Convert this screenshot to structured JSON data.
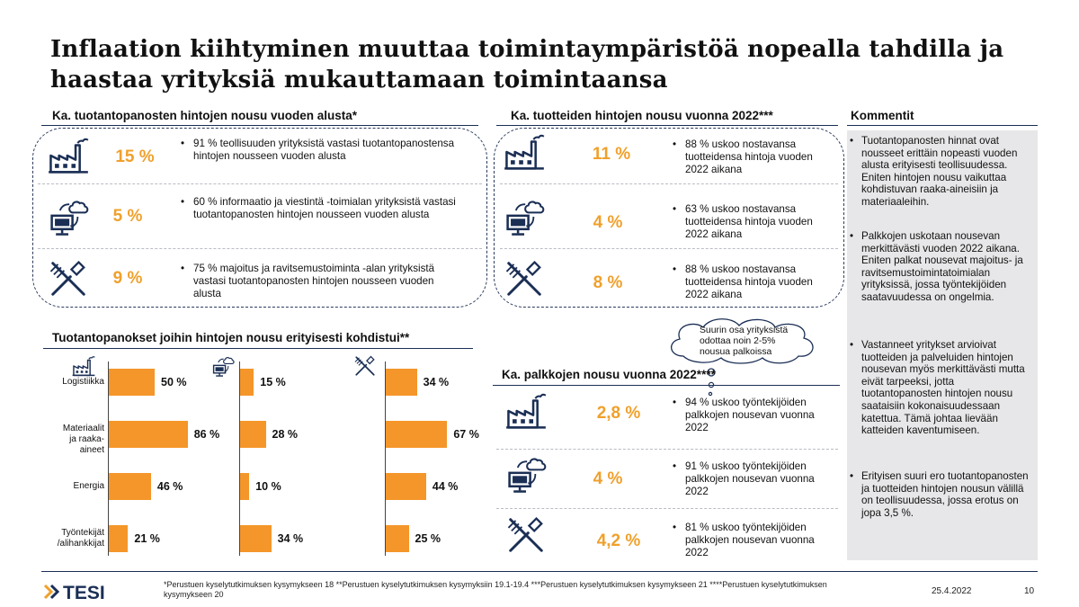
{
  "title": "Inflaation kiihtyminen muuttaa toimintaympäristöä nopealla tahdilla ja haastaa yrityksiä mukauttamaan toimintaansa",
  "left_section": {
    "heading": "Ka. tuotantopanosten hintojen nousu vuoden alusta*",
    "rows": [
      {
        "icon": "factory-icon",
        "pct": "15 %",
        "text": "91 % teollisuuden yrityksistä vastasi tuotantopanostensa hintojen nousseen vuoden alusta"
      },
      {
        "icon": "computer-cloud-icon",
        "pct": "5 %",
        "text": "60 % informaatio ja viestintä -toimialan yrityksistä vastasi tuotantopanosten hintojen nousseen vuoden alusta"
      },
      {
        "icon": "fork-knife-icon",
        "pct": "9 %",
        "text": "75 % majoitus ja ravitsemustoiminta -alan yrityksistä vastasi tuotantopanosten hintojen nousseen vuoden alusta"
      }
    ]
  },
  "middle_section": {
    "heading": "Ka. tuotteiden hintojen nousu vuonna 2022***",
    "rows": [
      {
        "icon": "factory-icon",
        "pct": "11 %",
        "text": "88 % uskoo nostavansa tuotteidensa hintoja vuoden 2022 aikana"
      },
      {
        "icon": "computer-cloud-icon",
        "pct": "4 %",
        "text": "63 % uskoo nostavansa tuotteidensa hintoja vuoden 2022 aikana"
      },
      {
        "icon": "fork-knife-icon",
        "pct": "8 %",
        "text": "88 % uskoo nostavansa tuotteidensa hintoja vuoden 2022 aikana"
      }
    ]
  },
  "wage_section": {
    "heading": "Ka. palkkojen nousu vuonna 2022****",
    "callout": "Suurin osa yrityksistä odottaa noin 2-5% nousua palkoissa",
    "rows": [
      {
        "icon": "factory-icon",
        "pct": "2,8 %",
        "text": "94 % uskoo työntekijöiden palkkojen nousevan vuonna 2022"
      },
      {
        "icon": "computer-cloud-icon",
        "pct": "4 %",
        "text": "91 % uskoo työntekijöiden palkkojen nousevan vuonna 2022"
      },
      {
        "icon": "fork-knife-icon",
        "pct": "4,2 %",
        "text": "81 % uskoo työntekijöiden palkkojen nousevan vuonna 2022"
      }
    ]
  },
  "chart_section": {
    "heading": "Tuotantopanokset joihin hintojen nousu erityisesti kohdistui**"
  },
  "chart_data": {
    "type": "bar",
    "orientation": "horizontal",
    "categories": [
      "Logistiikka",
      "Materiaalit ja raaka-aineet",
      "Energia",
      "Työntekijät /alihankkijat"
    ],
    "category_lines": [
      [
        "Logistiikka"
      ],
      [
        "Materiaalit",
        "ja raaka-aineet"
      ],
      [
        "Energia"
      ],
      [
        "Työntekijät",
        "/alihankkijat"
      ]
    ],
    "series": [
      {
        "icon": "factory-icon",
        "values": [
          50,
          86,
          46,
          21
        ],
        "labels": [
          "50 %",
          "86 %",
          "46 %",
          "21 %"
        ]
      },
      {
        "icon": "computer-cloud-icon",
        "values": [
          15,
          28,
          10,
          34
        ],
        "labels": [
          "15 %",
          "28 %",
          "10 %",
          "34 %"
        ]
      },
      {
        "icon": "fork-knife-icon",
        "values": [
          34,
          67,
          44,
          25
        ],
        "labels": [
          "34 %",
          "67 %",
          "44 %",
          "25 %"
        ]
      }
    ],
    "unit": "%",
    "xlim": [
      0,
      100
    ],
    "bar_color": "#f4962a"
  },
  "comments": {
    "heading": "Kommentit",
    "items": [
      "Tuotantopanosten hinnat ovat nousseet erittäin nopeasti vuoden alusta erityisesti teollisuudessa. Eniten hintojen nousu vaikuttaa kohdistuvan raaka-aineisiin ja materiaaleihin.",
      "Palkkojen uskotaan nousevan merkittävästi vuoden 2022 aikana. Eniten palkat nousevat majoitus- ja ravitsemustoimintatoimialan yrityksissä, jossa työntekijöiden saatavuudessa on ongelmia.",
      "Vastanneet yritykset arvioivat tuotteiden ja palveluiden hintojen nousevan myös merkittävästi mutta eivät tarpeeksi, jotta tuotantopanosten hintojen nousu saataisiin kokonaisuudessaan katettua. Tämä johtaa lievään katteiden kaventumiseen.",
      "Erityisen suuri ero tuotantopanosten ja tuotteiden hintojen nousun välillä on teollisuudessa, jossa erotus on jopa 3,5 %."
    ]
  },
  "footer": {
    "logo": "TESI",
    "note": "*Perustuen kyselytutkimuksen kysymykseen 18 **Perustuen kyselytutkimuksen kysymyksiin 19.1-19.4 ***Perustuen kyselytutkimuksen kysymykseen 21 ****Perustuen kyselytutkimuksen kysymykseen 20",
    "date": "25.4.2022",
    "page": "10"
  },
  "colors": {
    "accent": "#f0a02c",
    "navy": "#1b2f55",
    "bar": "#f4962a",
    "panel": "#e7e7e9"
  }
}
